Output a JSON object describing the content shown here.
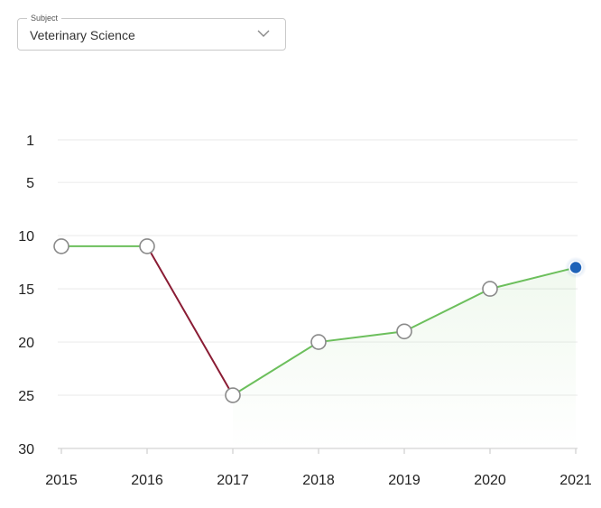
{
  "subject": {
    "legend": "Subject",
    "value": "Veterinary Science",
    "icon": "chevron-down-icon"
  },
  "colors": {
    "rise": "#6cbf5c",
    "fall": "#8a1c34",
    "current_point": "#1f63b8",
    "point_fill": "#ffffff",
    "point_stroke": "#8a8a8a",
    "grid": "#eeeeee"
  },
  "chart_data": {
    "type": "line",
    "x": [
      2015,
      2016,
      2017,
      2018,
      2019,
      2020,
      2021
    ],
    "y": [
      11,
      11,
      25,
      20,
      19,
      15,
      13
    ],
    "y_ticks": [
      1,
      5,
      10,
      15,
      20,
      25,
      30
    ],
    "ylim": [
      1,
      30
    ],
    "y_reversed": true,
    "grid": true,
    "highlight_last": true
  }
}
